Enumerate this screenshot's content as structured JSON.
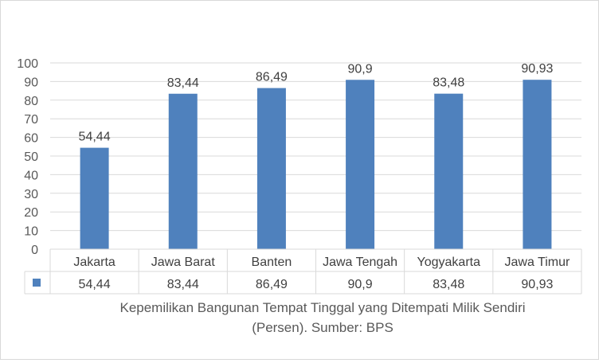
{
  "chart_data": {
    "type": "bar",
    "categories": [
      "Jakarta",
      "Jawa Barat",
      "Banten",
      "Jawa Tengah",
      "Yogyakarta",
      "Jawa Timur"
    ],
    "values": [
      54.44,
      83.44,
      86.49,
      90.9,
      83.48,
      90.93
    ],
    "value_labels": [
      "54,44",
      "83,44",
      "86,49",
      "90,9",
      "83,48",
      "90,93"
    ],
    "ylim": [
      0,
      100
    ],
    "yticks": [
      0,
      10,
      20,
      30,
      40,
      50,
      60,
      70,
      80,
      90,
      100
    ],
    "grid": true,
    "data_table": true,
    "bar_color": "#4f81bd",
    "caption_lines": [
      "Kepemilikan Bangunan Tempat Tinggal yang Ditempati Milik Sendiri",
      "(Persen). Sumber: BPS"
    ]
  }
}
